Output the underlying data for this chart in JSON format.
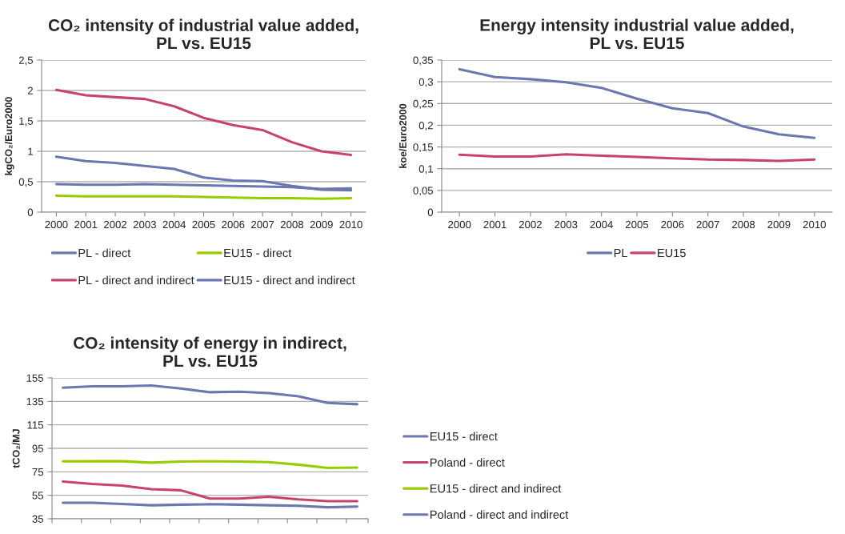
{
  "chart_data": [
    {
      "type": "line",
      "title": "CO₂ intensity of industrial value added,\nPL vs. EU15",
      "ylabel": "kgCO₂/Euro2000",
      "categories": [
        "2000",
        "2001",
        "2002",
        "2003",
        "2004",
        "2005",
        "2006",
        "2007",
        "2008",
        "2009",
        "2010"
      ],
      "series": [
        {
          "name": "PL - direct",
          "color": "#6b77b0",
          "values": [
            0.91,
            0.84,
            0.81,
            0.76,
            0.71,
            0.57,
            0.52,
            0.51,
            0.43,
            0.37,
            0.36
          ]
        },
        {
          "name": "EU15 - direct",
          "color": "#99cc00",
          "values": [
            0.27,
            0.26,
            0.26,
            0.26,
            0.26,
            0.25,
            0.24,
            0.23,
            0.23,
            0.22,
            0.23
          ]
        },
        {
          "name": "PL - direct and indirect",
          "color": "#c8426e",
          "values": [
            2.01,
            1.92,
            1.89,
            1.86,
            1.74,
            1.55,
            1.43,
            1.35,
            1.15,
            1.0,
            0.94
          ]
        },
        {
          "name": "EU15 - direct and indirect",
          "color": "#6b77b0",
          "values": [
            0.46,
            0.45,
            0.45,
            0.46,
            0.45,
            0.44,
            0.43,
            0.42,
            0.41,
            0.38,
            0.39
          ]
        }
      ],
      "ylim": [
        0,
        2.5
      ],
      "yticks": [
        0,
        {
          "value": 0.5,
          "label": "0,5"
        },
        1,
        {
          "value": 1.5,
          "label": "1,5"
        },
        2,
        {
          "value": 2.5,
          "label": "2,5"
        }
      ],
      "grid": "y",
      "legend": "bottom",
      "marker": "none",
      "line_style": "solid"
    },
    {
      "type": "line",
      "title": "Energy intensity industrial value added,\nPL vs. EU15",
      "ylabel": "koe/Euro2000",
      "categories": [
        "2000",
        "2001",
        "2002",
        "2003",
        "2004",
        "2005",
        "2006",
        "2007",
        "2008",
        "2009",
        "2010"
      ],
      "series": [
        {
          "name": "PL",
          "color": "#6b77b0",
          "values": [
            0.329,
            0.311,
            0.306,
            0.299,
            0.286,
            0.261,
            0.239,
            0.228,
            0.197,
            0.179,
            0.171
          ]
        },
        {
          "name": "EU15",
          "color": "#c8426e",
          "values": [
            0.132,
            0.128,
            0.128,
            0.133,
            0.13,
            0.127,
            0.124,
            0.121,
            0.12,
            0.118,
            0.121
          ]
        }
      ],
      "ylim": [
        0,
        0.35
      ],
      "yticks": [
        0,
        {
          "value": 0.05,
          "label": "0,05"
        },
        {
          "value": 0.1,
          "label": "0,1"
        },
        {
          "value": 0.15,
          "label": "0,15"
        },
        {
          "value": 0.2,
          "label": "0,2"
        },
        {
          "value": 0.25,
          "label": "0,25"
        },
        {
          "value": 0.3,
          "label": "0,3"
        },
        {
          "value": 0.35,
          "label": "0,35"
        }
      ],
      "grid": "y",
      "legend": "bottom",
      "marker": "none",
      "line_style": "solid"
    },
    {
      "type": "line",
      "title": "CO₂ intensity of energy in indirect,\nPL vs. EU15",
      "ylabel": "tCO₂/MJ",
      "categories": [
        null,
        null,
        null,
        null,
        null,
        null,
        null,
        null,
        null,
        null,
        null
      ],
      "series": [
        {
          "name": "EU15 - direct",
          "color": "#6b77b0",
          "values": [
            146.7,
            147.8,
            147.8,
            148.5,
            145.9,
            142.8,
            143.3,
            142.0,
            139.3,
            133.7,
            132.6
          ]
        },
        {
          "name": "Poland - direct",
          "color": "#c8426e",
          "values": [
            66.7,
            64.6,
            63.3,
            60.2,
            59.3,
            52.2,
            52.2,
            53.7,
            51.5,
            50.0,
            50.0
          ]
        },
        {
          "name": "EU15 - direct and indirect",
          "color": "#99cc00",
          "values": [
            83.9,
            84.0,
            84.0,
            82.8,
            83.7,
            83.9,
            83.7,
            83.3,
            81.1,
            78.3,
            78.7
          ]
        },
        {
          "name": "Poland - direct and indirect",
          "color": "#6b77b0",
          "values": [
            48.7,
            48.7,
            47.6,
            46.5,
            47.0,
            47.4,
            47.0,
            46.5,
            46.1,
            44.8,
            45.4
          ]
        }
      ],
      "ylim": [
        35,
        155
      ],
      "yticks": [
        35,
        55,
        75,
        95,
        115,
        135,
        155
      ],
      "grid": "y",
      "legend": "right",
      "marker": "none",
      "line_style": "solid",
      "tick_labels": "y"
    }
  ]
}
